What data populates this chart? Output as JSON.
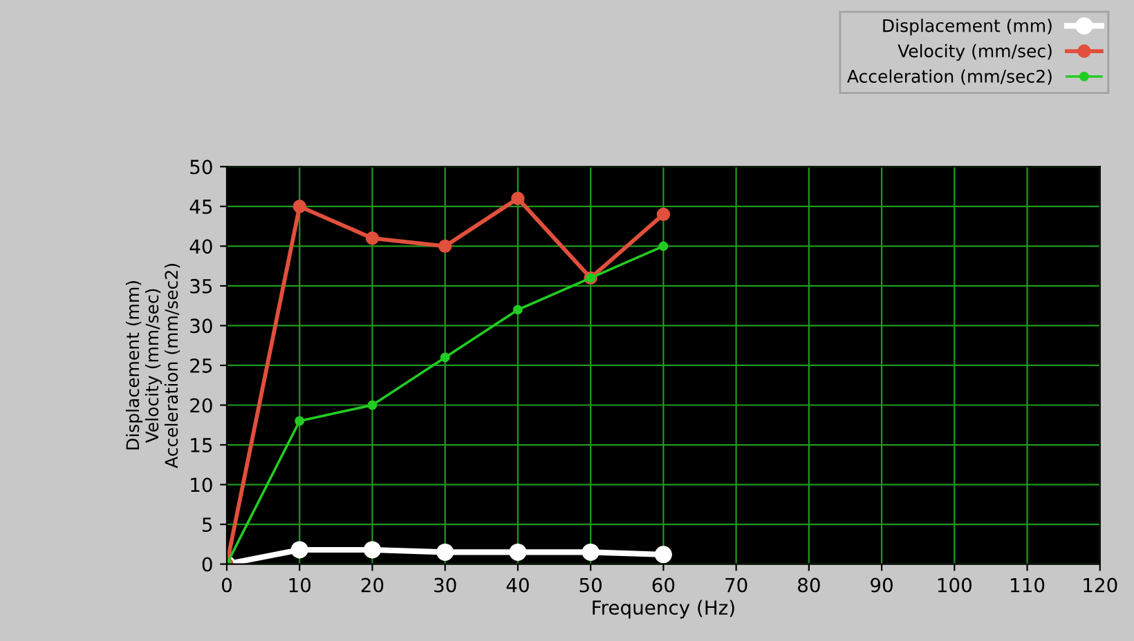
{
  "chart_data": {
    "type": "line",
    "xlabel": "Frequency (Hz)",
    "ylabel": "Displacement (mm)\nVelocity (mm/sec)\nAcceleration (mm/sec2)",
    "x": [
      0,
      10,
      20,
      30,
      40,
      50,
      60
    ],
    "series": [
      {
        "name": "Displacement (mm)",
        "color": "#ffffff",
        "values": [
          0,
          1.8,
          1.8,
          1.5,
          1.5,
          1.5,
          1.2
        ]
      },
      {
        "name": "Velocity (mm/sec)",
        "color": "#e0503c",
        "values": [
          0,
          45,
          41,
          40,
          46,
          36,
          44
        ]
      },
      {
        "name": "Acceleration (mm/sec2)",
        "color": "#22cc22",
        "values": [
          0,
          18,
          20,
          26,
          32,
          36,
          40
        ]
      }
    ],
    "xlim": [
      0,
      120
    ],
    "xticks": [
      0,
      10,
      20,
      30,
      40,
      50,
      60,
      70,
      80,
      90,
      100,
      110,
      120
    ],
    "ylim": [
      0,
      50
    ],
    "yticks": [
      0,
      5,
      10,
      15,
      20,
      25,
      30,
      35,
      40,
      45,
      50
    ],
    "grid": true,
    "legend": "top right",
    "marker": "circle",
    "line_style": "solid"
  }
}
